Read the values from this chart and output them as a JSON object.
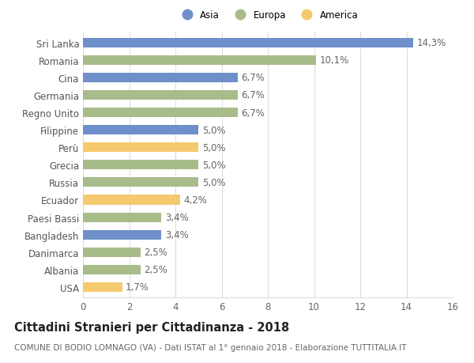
{
  "categories": [
    "Sri Lanka",
    "Romania",
    "Cina",
    "Germania",
    "Regno Unito",
    "Filippine",
    "Perù",
    "Grecia",
    "Russia",
    "Ecuador",
    "Paesi Bassi",
    "Bangladesh",
    "Danimarca",
    "Albania",
    "USA"
  ],
  "values": [
    14.3,
    10.1,
    6.7,
    6.7,
    6.7,
    5.0,
    5.0,
    5.0,
    5.0,
    4.2,
    3.4,
    3.4,
    2.5,
    2.5,
    1.7
  ],
  "labels": [
    "14,3%",
    "10,1%",
    "6,7%",
    "6,7%",
    "6,7%",
    "5,0%",
    "5,0%",
    "5,0%",
    "5,0%",
    "4,2%",
    "3,4%",
    "3,4%",
    "2,5%",
    "2,5%",
    "1,7%"
  ],
  "colors": [
    "#6e8fc9",
    "#a8bc8a",
    "#6e8fc9",
    "#a8bc8a",
    "#a8bc8a",
    "#6e8fc9",
    "#f5c96e",
    "#a8bc8a",
    "#a8bc8a",
    "#f5c96e",
    "#a8bc8a",
    "#6e8fc9",
    "#a8bc8a",
    "#a8bc8a",
    "#f5c96e"
  ],
  "legend_labels": [
    "Asia",
    "Europa",
    "America"
  ],
  "legend_colors": [
    "#6e8fc9",
    "#a8bc8a",
    "#f5c96e"
  ],
  "title": "Cittadini Stranieri per Cittadinanza - 2018",
  "subtitle": "COMUNE DI BODIO LOMNAGO (VA) - Dati ISTAT al 1° gennaio 2018 - Elaborazione TUTTITALIA.IT",
  "xlim": [
    0,
    16
  ],
  "xticks": [
    0,
    2,
    4,
    6,
    8,
    10,
    12,
    14,
    16
  ],
  "background_color": "#ffffff",
  "grid_color": "#dddddd",
  "bar_height": 0.55,
  "label_fontsize": 8.5,
  "tick_fontsize": 8.5,
  "title_fontsize": 10.5,
  "subtitle_fontsize": 7.5
}
